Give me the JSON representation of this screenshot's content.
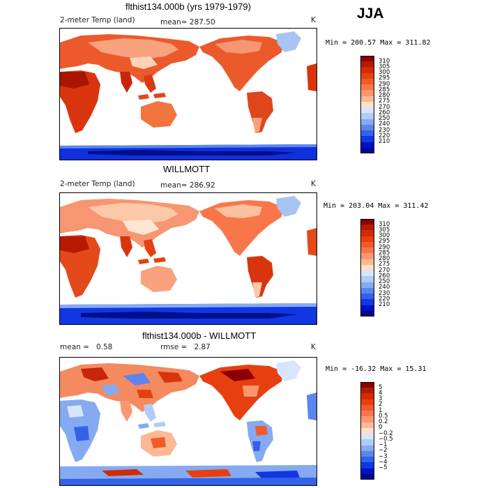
{
  "season": "JJA",
  "units": "K",
  "panels": [
    {
      "title": "flthist134.000b (yrs 1979-1979)",
      "left_label": "2-meter Temp (land)",
      "stat_label": "mean=",
      "stat_value": "287.50",
      "minmax": "Min = 200.57 Max = 311.82"
    },
    {
      "title": "WILLMOTT",
      "left_label": "2-meter Temp (land)",
      "stat_label": "mean=",
      "stat_value": "286.92",
      "minmax": "Min = 203.04 Max = 311.42"
    },
    {
      "title": "flthist134.000b - WILLMOTT",
      "left_label": "mean =",
      "left_value": "0.58",
      "stat_label": "rmse =",
      "stat_value": "2.87",
      "minmax": "Min = -16.32 Max =  15.31"
    }
  ],
  "colorbars": {
    "abs": {
      "ticks": [
        "310",
        "305",
        "300",
        "295",
        "290",
        "285",
        "280",
        "275",
        "270",
        "260",
        "250",
        "240",
        "230",
        "220",
        "210"
      ],
      "colors": [
        "#8b0000",
        "#b51a00",
        "#d32a00",
        "#e64010",
        "#f25a28",
        "#f8774a",
        "#fb9670",
        "#fdb896",
        "#ffe0c8",
        "#d8e6fb",
        "#b0ccf7",
        "#85aaf2",
        "#5a86ee",
        "#3461e9",
        "#1037e2",
        "#0010c8",
        "#000a90"
      ]
    },
    "diff": {
      "ticks": [
        "5",
        "4",
        "3",
        "2",
        "1",
        "0.5",
        "0.2",
        "0",
        "−0.2",
        "−0.5",
        "−1",
        "−2",
        "−3",
        "−4",
        "−5"
      ],
      "colors": [
        "#8b0000",
        "#b51a00",
        "#d32a00",
        "#e64010",
        "#f25a28",
        "#f8774a",
        "#fb9670",
        "#fdb896",
        "#ffe0c8",
        "#d8e6fb",
        "#b0ccf7",
        "#85aaf2",
        "#5a86ee",
        "#3461e9",
        "#1037e2",
        "#0010c8",
        "#000a90"
      ]
    }
  }
}
